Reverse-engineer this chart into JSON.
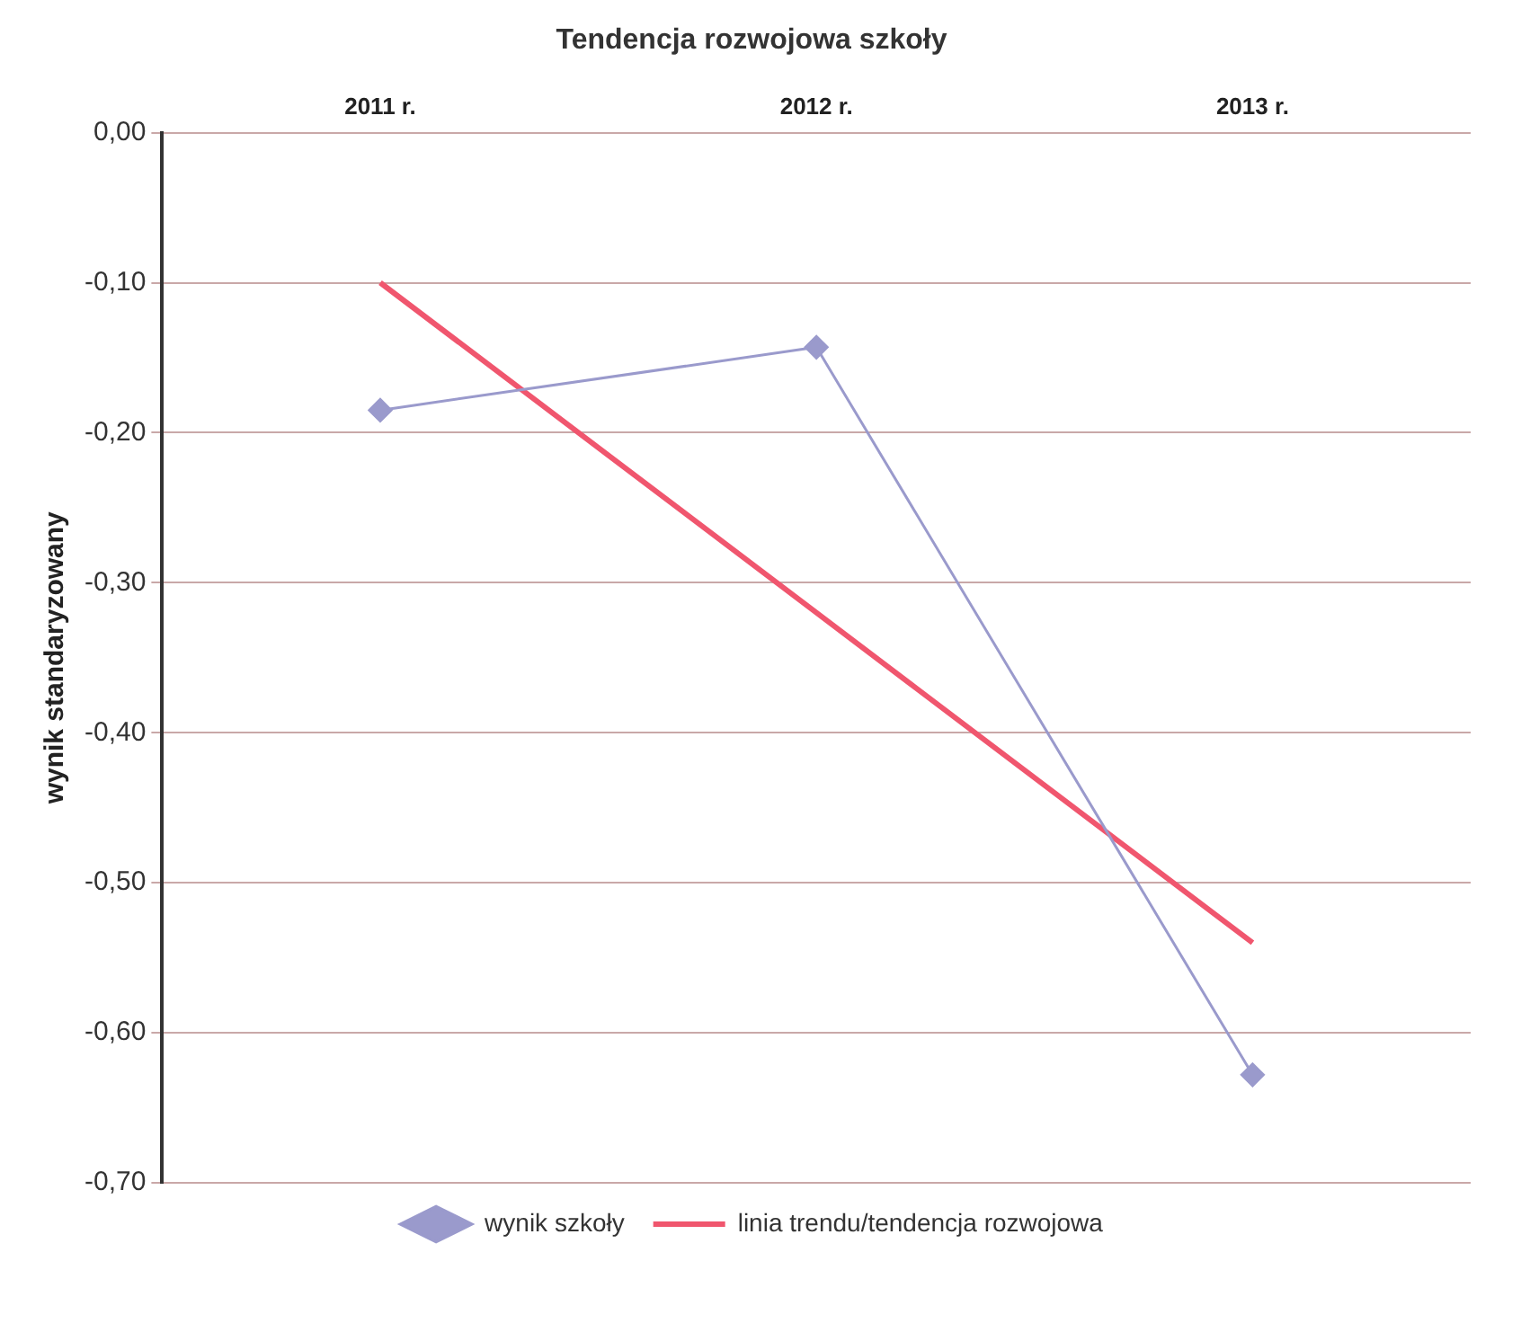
{
  "chart_data": {
    "type": "line",
    "title": "Tendencja rozwojowa szkoły",
    "ylabel": "wynik standaryzowany",
    "categories": [
      "2011 r.",
      "2012 r.",
      "2013 r."
    ],
    "series": [
      {
        "name": "wynik szkoły",
        "color": "#9a9acc",
        "values": [
          -0.185,
          -0.143,
          -0.628
        ],
        "marker": "diamond"
      },
      {
        "name": "linia trendu/tendencja rozwojowa",
        "color": "#f0566e",
        "values": [
          -0.1,
          -0.32,
          -0.54
        ],
        "marker": "none"
      }
    ],
    "ylim": [
      -0.7,
      0
    ],
    "yticks": [
      {
        "value": 0,
        "label": "0,00"
      },
      {
        "value": -0.1,
        "label": "-0,10"
      },
      {
        "value": -0.2,
        "label": "-0,20"
      },
      {
        "value": -0.3,
        "label": "-0,30"
      },
      {
        "value": -0.4,
        "label": "-0,40"
      },
      {
        "value": -0.5,
        "label": "-0,50"
      },
      {
        "value": -0.6,
        "label": "-0,60"
      },
      {
        "value": -0.7,
        "label": "-0,70"
      }
    ],
    "grid": "y",
    "legend": "bottom"
  }
}
